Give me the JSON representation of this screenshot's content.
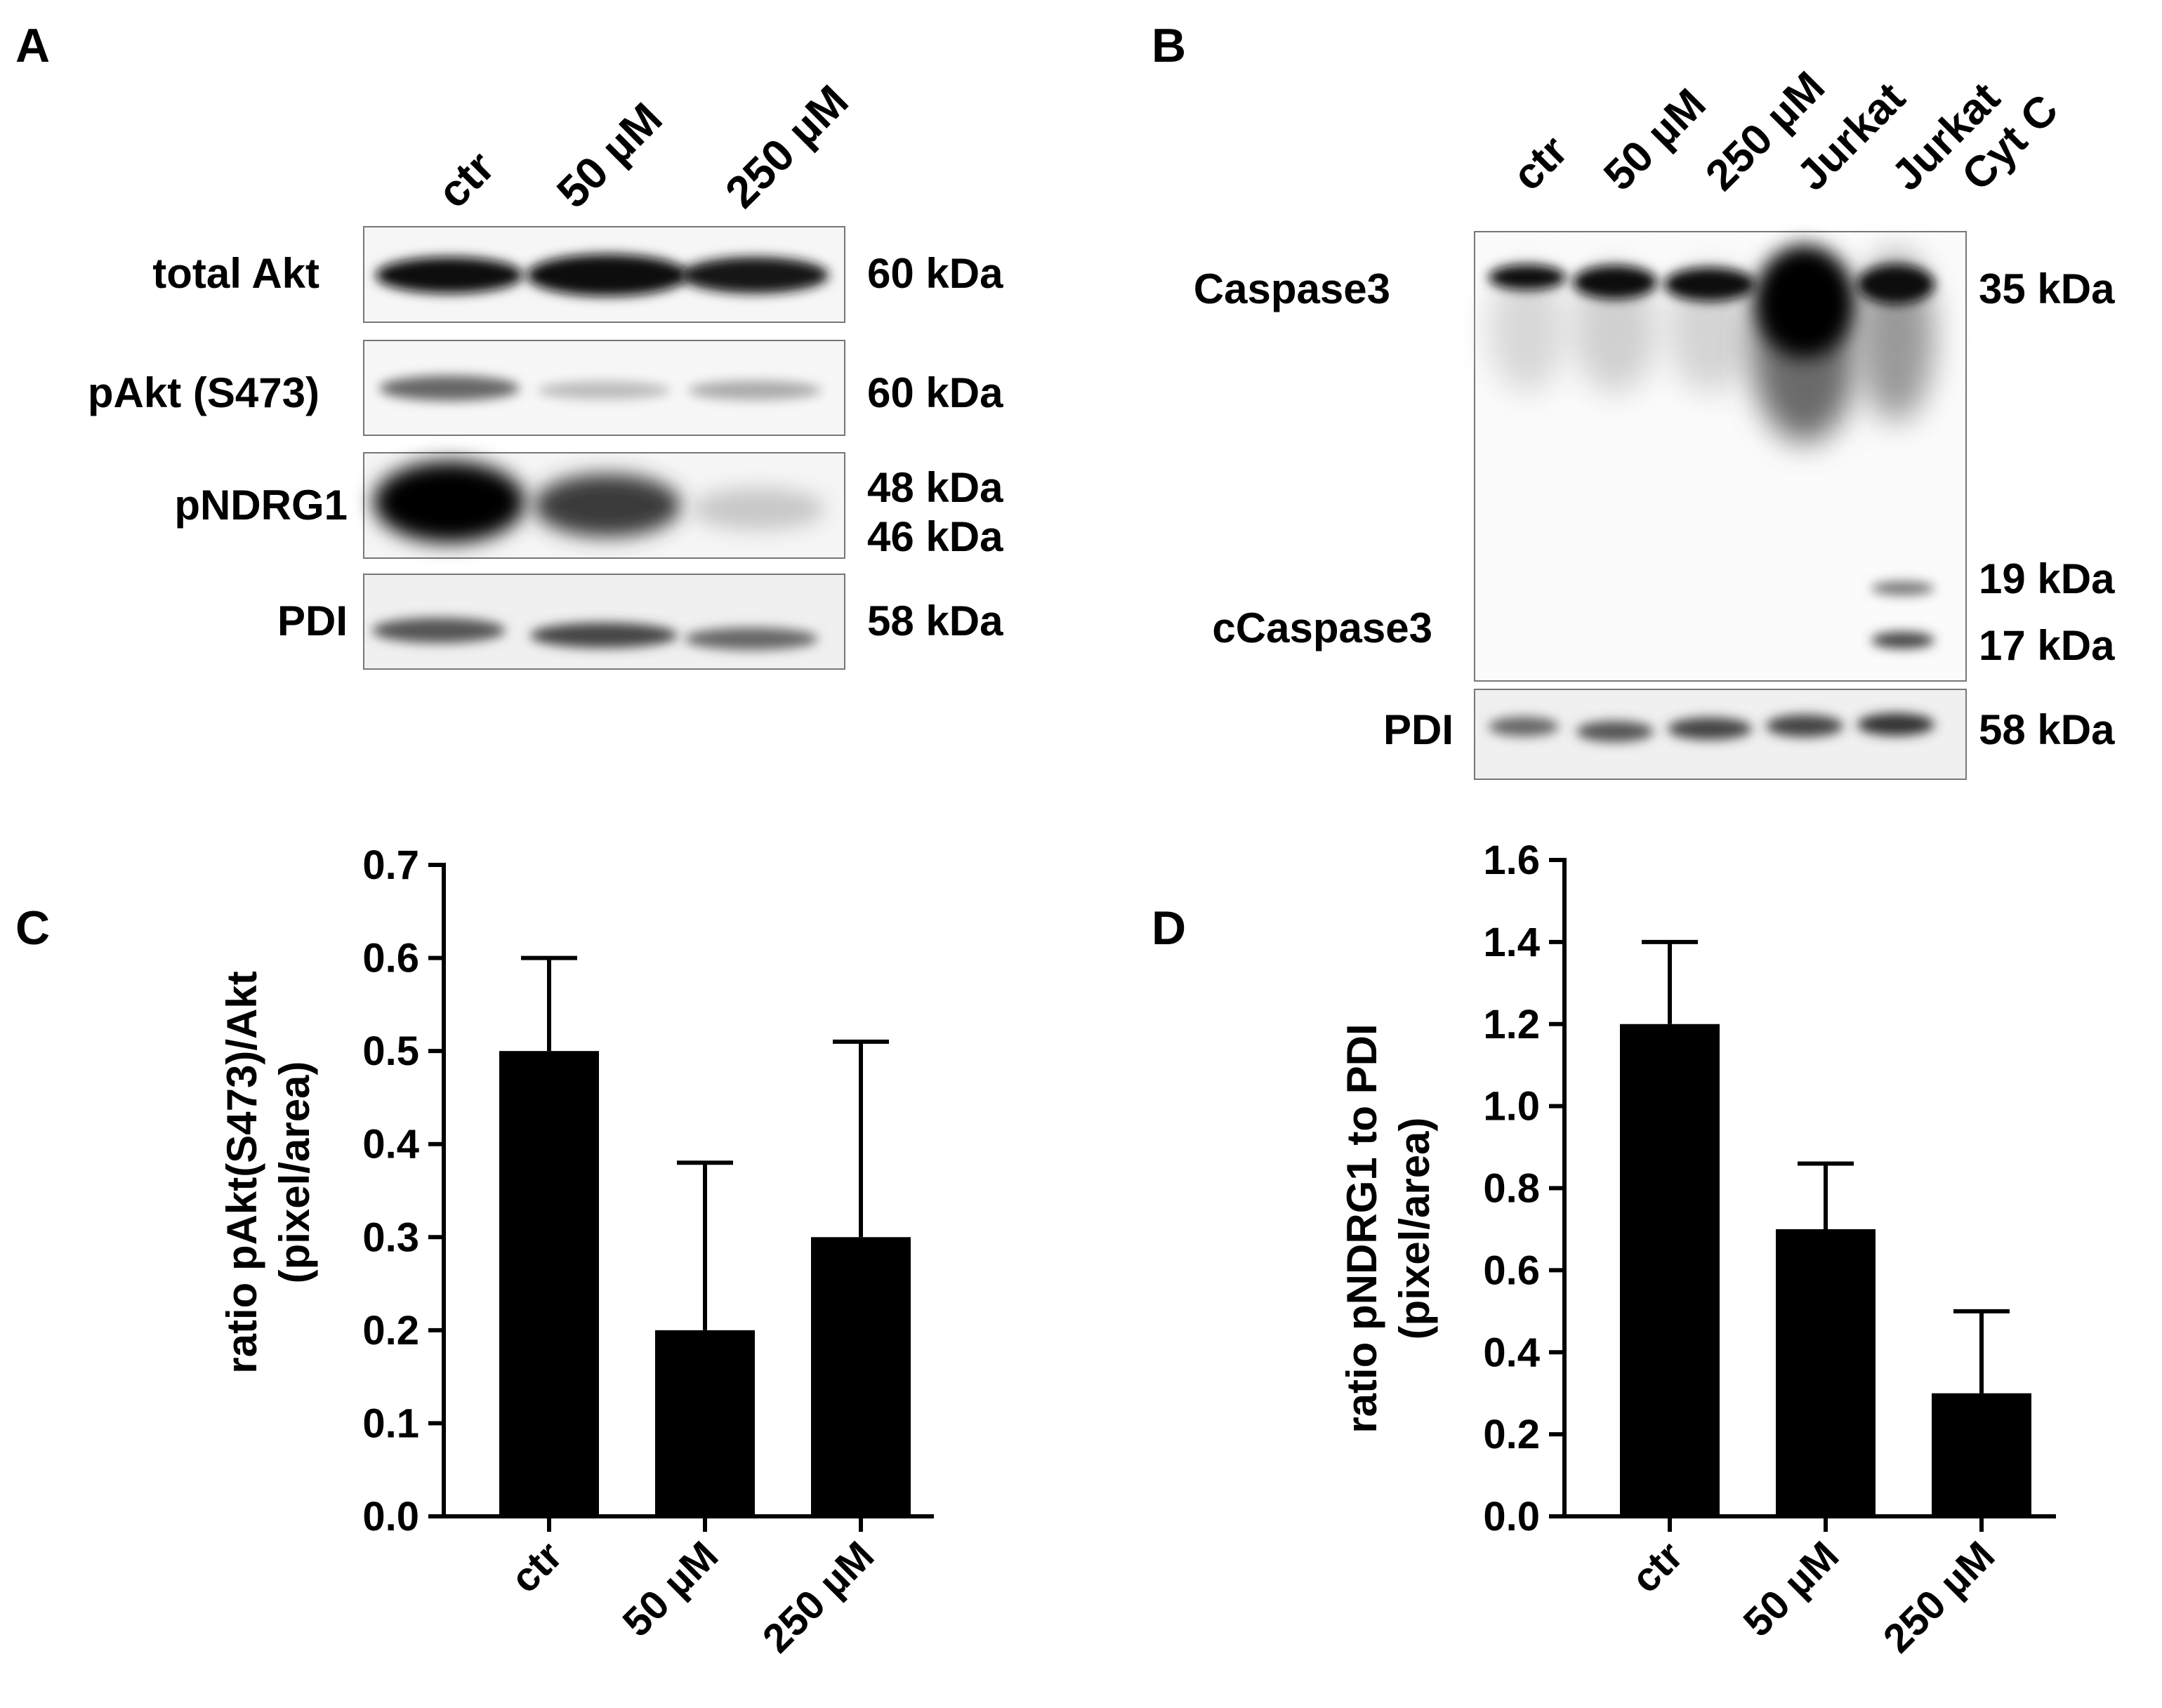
{
  "panels": {
    "A": {
      "letter": "A",
      "lanes": [
        "ctr",
        "50 µM",
        "250 µM"
      ],
      "rows": [
        {
          "label": "total Akt",
          "kda": [
            "60 kDa"
          ]
        },
        {
          "label": "pAkt (S473)",
          "kda": [
            "60 kDa"
          ]
        },
        {
          "label": "pNDRG1",
          "kda": [
            "48 kDa",
            "46 kDa"
          ]
        },
        {
          "label": "PDI",
          "kda": [
            "58 kDa"
          ]
        }
      ]
    },
    "B": {
      "letter": "B",
      "lanes": [
        "ctr",
        "50 µM",
        "250 µM",
        "Jurkat",
        "Jurkat\nCyt C"
      ],
      "lane_line1": [
        "ctr",
        "50 µM",
        "250 µM",
        "Jurkat",
        "Jurkat"
      ],
      "lane_line2": [
        "",
        "",
        "",
        "",
        "Cyt C"
      ],
      "labels": {
        "caspase": "Caspase3",
        "cleaved": "cCaspase3",
        "pdi": "PDI"
      },
      "kda": {
        "caspase": "35 kDa",
        "c19": "19 kDa",
        "c17": "17 kDa",
        "pdi": "58 kDa"
      }
    },
    "C": {
      "letter": "C"
    },
    "D": {
      "letter": "D"
    }
  },
  "chart_data": [
    {
      "panel": "C",
      "type": "bar",
      "categories": [
        "ctr",
        "50 µM",
        "250 µM"
      ],
      "values": [
        0.5,
        0.2,
        0.3
      ],
      "error_upper": [
        0.6,
        0.38,
        0.51
      ],
      "ylabel_line1": "ratio pAkt(S473)/Akt",
      "ylabel_line2": "(pixel/area)",
      "ylim": [
        0,
        0.7
      ],
      "yticks": [
        "0.0",
        "0.1",
        "0.2",
        "0.3",
        "0.4",
        "0.5",
        "0.6",
        "0.7"
      ],
      "bar_color": "#000000",
      "grid": false
    },
    {
      "panel": "D",
      "type": "bar",
      "categories": [
        "ctr",
        "50 µM",
        "250 µM"
      ],
      "values": [
        1.2,
        0.7,
        0.3
      ],
      "error_upper": [
        1.4,
        0.86,
        0.5
      ],
      "ylabel_line1": "ratio pNDRG1 to PDI",
      "ylabel_line2": "(pixel/area)",
      "ylim": [
        0,
        1.6
      ],
      "yticks": [
        "0.0",
        "0.2",
        "0.4",
        "0.6",
        "0.8",
        "1.0",
        "1.2",
        "1.4",
        "1.6"
      ],
      "bar_color": "#000000",
      "grid": false
    }
  ]
}
